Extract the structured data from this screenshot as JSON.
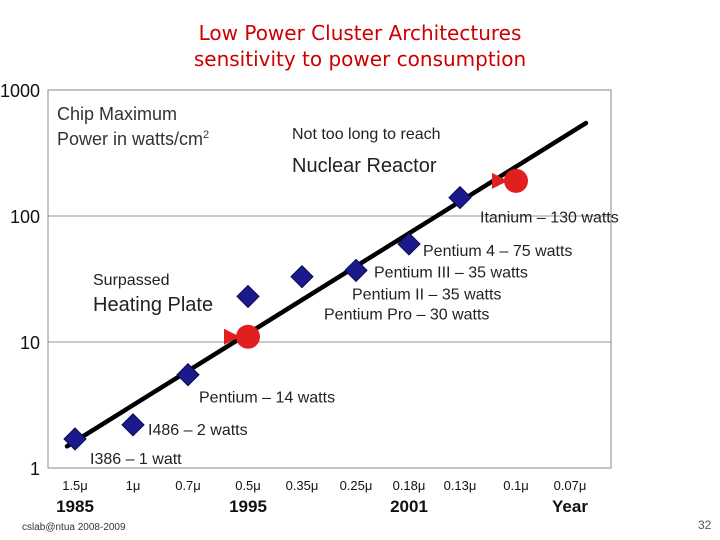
{
  "slide": {
    "title_line1": "Low Power Cluster Architectures",
    "title_line2": "sensitivity to power consumption",
    "footer": "cslab@ntua 2008-2009",
    "page_number": "32"
  },
  "colors": {
    "title": "#cc0000",
    "marker": "#1a1a8c",
    "arrow": "#e02020",
    "line": "#000000",
    "grid": "#aaaaaa"
  },
  "chart_data": {
    "type": "scatter",
    "y_scale": "log",
    "ylim": [
      1,
      1000
    ],
    "y_ticks": [
      "1",
      "10",
      "100",
      "1000"
    ],
    "x_ticks": [
      "1.5μ",
      "1μ",
      "0.7μ",
      "0.5μ",
      "0.35μ",
      "0.25μ",
      "0.18μ",
      "0.13μ",
      "0.1μ",
      "0.07μ"
    ],
    "x_year_labels": [
      {
        "text": "1985",
        "at": "1.5μ"
      },
      {
        "text": "1995",
        "at": "0.5μ"
      },
      {
        "text": "2001",
        "at": "0.18μ"
      },
      {
        "text": "Year",
        "at": "0.07μ"
      }
    ],
    "ylabel_line1": "Chip Maximum",
    "ylabel_line2_prefix": "Power in watts/cm",
    "ylabel_sup": "2",
    "grid": "horizontal",
    "trend": {
      "from": {
        "x": "1.5μ",
        "y": 1.6
      },
      "to": {
        "x": "0.07μ",
        "y": 490
      }
    },
    "points": [
      {
        "label": "I386 – 1 watt",
        "x": "1.5μ",
        "y": 1.7
      },
      {
        "label": "I486 – 2 watts",
        "x": "1μ",
        "y": 2.2
      },
      {
        "label": "Pentium – 14 watts",
        "x": "0.7μ",
        "y": 5.5
      },
      {
        "label": "Pentium Pro – 30 watts",
        "x": "0.5μ",
        "y": 23
      },
      {
        "label": "Pentium II – 35 watts",
        "x": "0.35μ",
        "y": 33
      },
      {
        "label": "Pentium III – 35 watts",
        "x": "0.25μ",
        "y": 37
      },
      {
        "label": "Pentium 4 – 75 watts",
        "x": "0.18μ",
        "y": 60
      },
      {
        "label": "Itanium – 130 watts",
        "x": "0.13μ",
        "y": 140
      }
    ],
    "references": [
      {
        "line1": "Surpassed",
        "line2": "Heating Plate",
        "x": "0.5μ",
        "y": 11
      },
      {
        "line1": "Not too long to reach",
        "line2": "Nuclear Reactor",
        "x": "0.1μ",
        "y": 190
      }
    ]
  }
}
